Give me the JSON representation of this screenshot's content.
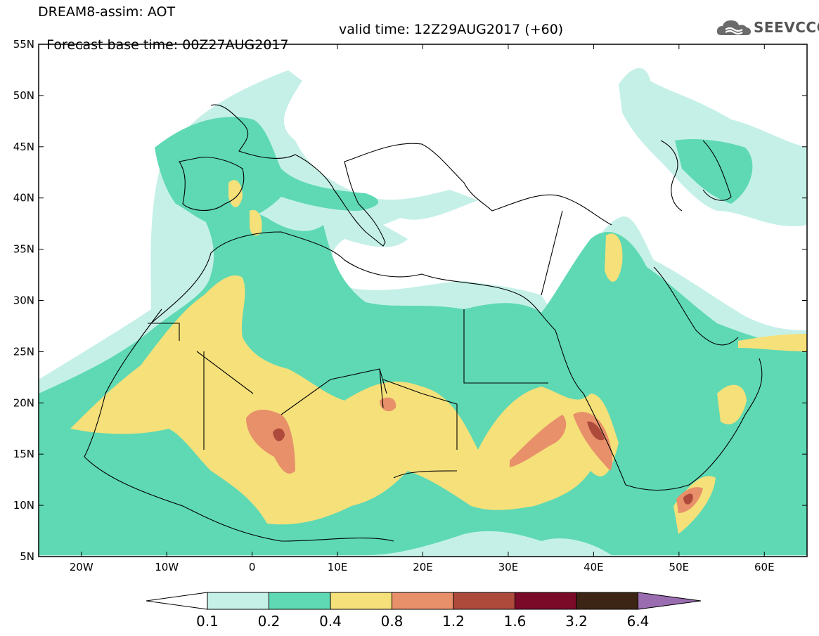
{
  "header": {
    "title": "DREAM8-assim: AOT",
    "forecast_base": "Forecast base time: 00Z27AUG2017",
    "valid_time": "valid time: 12Z29AUG2017 (+60)"
  },
  "logo": {
    "text": "SEEVCCC",
    "icon": "cloud-icon"
  },
  "map": {
    "lon_range": [
      -25,
      65
    ],
    "lat_range": [
      5,
      55
    ],
    "x_ticks": [
      "20W",
      "10W",
      "0",
      "10E",
      "20E",
      "30E",
      "40E",
      "50E",
      "60E"
    ],
    "y_ticks": [
      "55N",
      "50N",
      "45N",
      "40N",
      "35N",
      "30N",
      "25N",
      "20N",
      "15N",
      "10N",
      "5N"
    ]
  },
  "colorbar": {
    "labels": [
      "0.1",
      "0.2",
      "0.4",
      "0.8",
      "1.2",
      "1.6",
      "3.2",
      "6.4"
    ],
    "colors": [
      "#ffffff",
      "#c5f0e8",
      "#5ed9b3",
      "#f5e07a",
      "#e8906a",
      "#ad4a3c",
      "#7a0a28",
      "#3d2515",
      "#9a6cb0"
    ]
  },
  "levels": {
    "l1_color": "#c5f0e8",
    "l2_color": "#5ed9b3",
    "l3_color": "#f5e07a",
    "l4_color": "#e8906a",
    "l5_color": "#ad4a3c"
  }
}
